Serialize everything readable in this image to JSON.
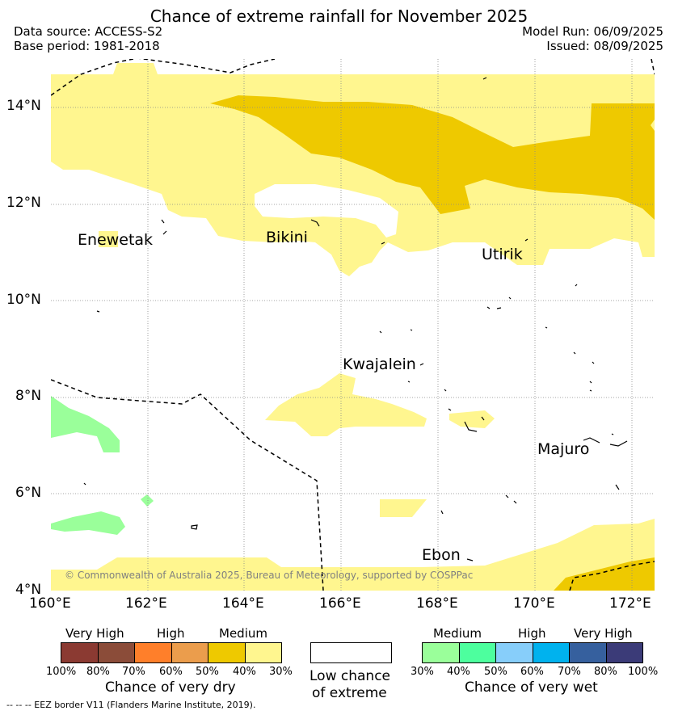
{
  "title": "Chance of extreme rainfall for November 2025",
  "header": {
    "data_source": "Data source: ACCESS-S2",
    "base_period": "Base period: 1981-2018",
    "model_run": "Model Run: 06/09/2025",
    "issued": "Issued: 08/09/2025"
  },
  "axes": {
    "lat_labels": [
      "14°N",
      "12°N",
      "10°N",
      "8°N",
      "6°N",
      "4°N"
    ],
    "lon_labels": [
      "160°E",
      "162°E",
      "164°E",
      "166°E",
      "168°E",
      "170°E",
      "172°E"
    ]
  },
  "places": {
    "enewetak": "Enewetak",
    "bikini": "Bikini",
    "utirik": "Utirik",
    "kwajalein": "Kwajalein",
    "majuro": "Majuro",
    "ebon": "Ebon"
  },
  "copyright": "© Commonwealth of Australia 2025, Bureau of Meteorology, supported by COSPPac",
  "colors": {
    "dry_30_40": "#fff68f",
    "dry_40_50": "#eec900",
    "dry_50_60": "#eb9d4c",
    "dry_60_70": "#ff7f2a",
    "dry_70_80": "#8b4c39",
    "dry_80_100": "#8b3a32",
    "wet_30_40": "#9aff9a",
    "wet_40_50": "#4dff9e",
    "wet_50_60": "#87cefa",
    "wet_60_70": "#00b2ee",
    "wet_70_80": "#36609e",
    "wet_80_100": "#3b3b78"
  },
  "legend": {
    "dry": {
      "levels": [
        "Very High",
        "High",
        "Medium"
      ],
      "ticks": [
        "100%",
        "80%",
        "70%",
        "60%",
        "50%",
        "40%",
        "30%"
      ],
      "title": "Chance of very dry"
    },
    "neutral": {
      "title_line1": "Low chance",
      "title_line2": "of extreme"
    },
    "wet": {
      "levels": [
        "Medium",
        "High",
        "Very High"
      ],
      "ticks": [
        "30%",
        "40%",
        "50%",
        "60%",
        "70%",
        "80%",
        "100%"
      ],
      "title": "Chance of very wet"
    }
  },
  "eez_note": "-- -- -- EEZ border V11 (Flanders Marine Institute, 2019)."
}
